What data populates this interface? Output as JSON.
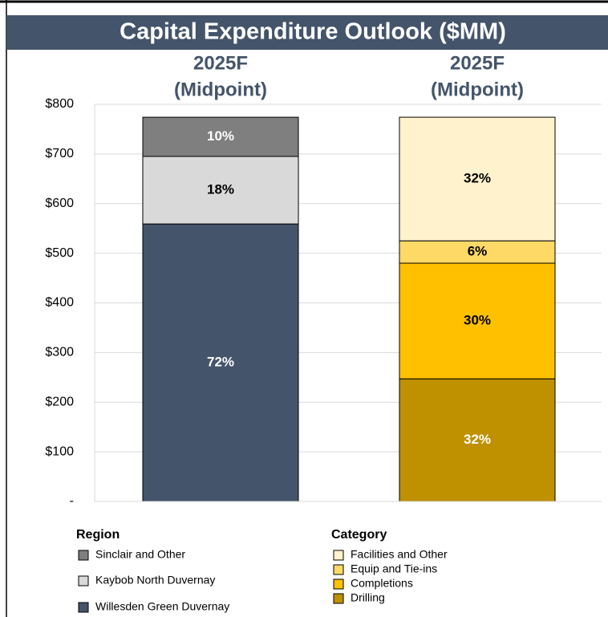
{
  "chart_data": {
    "type": "stacked-bar",
    "title": "Capital Expenditure Outlook ($MM)",
    "ylim": [
      0,
      800
    ],
    "yticks": [
      {
        "value": 0,
        "label": "-"
      },
      {
        "value": 100,
        "label": "$100"
      },
      {
        "value": 200,
        "label": "$200"
      },
      {
        "value": 300,
        "label": "$300"
      },
      {
        "value": 400,
        "label": "$400"
      },
      {
        "value": 500,
        "label": "$500"
      },
      {
        "value": 600,
        "label": "$600"
      },
      {
        "value": 700,
        "label": "$700"
      },
      {
        "value": 800,
        "label": "$800"
      }
    ],
    "grid": true,
    "bars": [
      {
        "category": [
          "2025F",
          "(Midpoint)"
        ],
        "legend_title": "Region",
        "series": [
          {
            "name": "Sinclair and Other",
            "color": "#7f7f7f",
            "label_color": "#ffffff",
            "values": [
              79
            ],
            "value_labels": [
              "10%"
            ]
          },
          {
            "name": "Kaybob North Duvernay",
            "color": "#d9d9d9",
            "label_color": "#000000",
            "values": [
              136
            ],
            "value_labels": [
              "18%"
            ]
          },
          {
            "name": "Willesden Green Duvernay",
            "color": "#44546a",
            "label_color": "#ffffff",
            "values": [
              559
            ],
            "value_labels": [
              "72%"
            ]
          }
        ]
      },
      {
        "category": [
          "2025F",
          "(Midpoint)"
        ],
        "legend_title": "Category",
        "series": [
          {
            "name": "Facilities and Other",
            "color": "#fff2cc",
            "label_color": "#000000",
            "values": [
              249
            ],
            "value_labels": [
              "32%"
            ]
          },
          {
            "name": "Equip and Tie-ins",
            "color": "#ffd966",
            "label_color": "#000000",
            "values": [
              45
            ],
            "value_labels": [
              "6%"
            ]
          },
          {
            "name": "Completions",
            "color": "#ffc000",
            "label_color": "#000000",
            "values": [
              233
            ],
            "value_labels": [
              "30%"
            ]
          },
          {
            "name": "Drilling",
            "color": "#bf9000",
            "label_color": "#ffffff",
            "values": [
              247
            ],
            "value_labels": [
              "32%"
            ]
          }
        ]
      }
    ]
  }
}
